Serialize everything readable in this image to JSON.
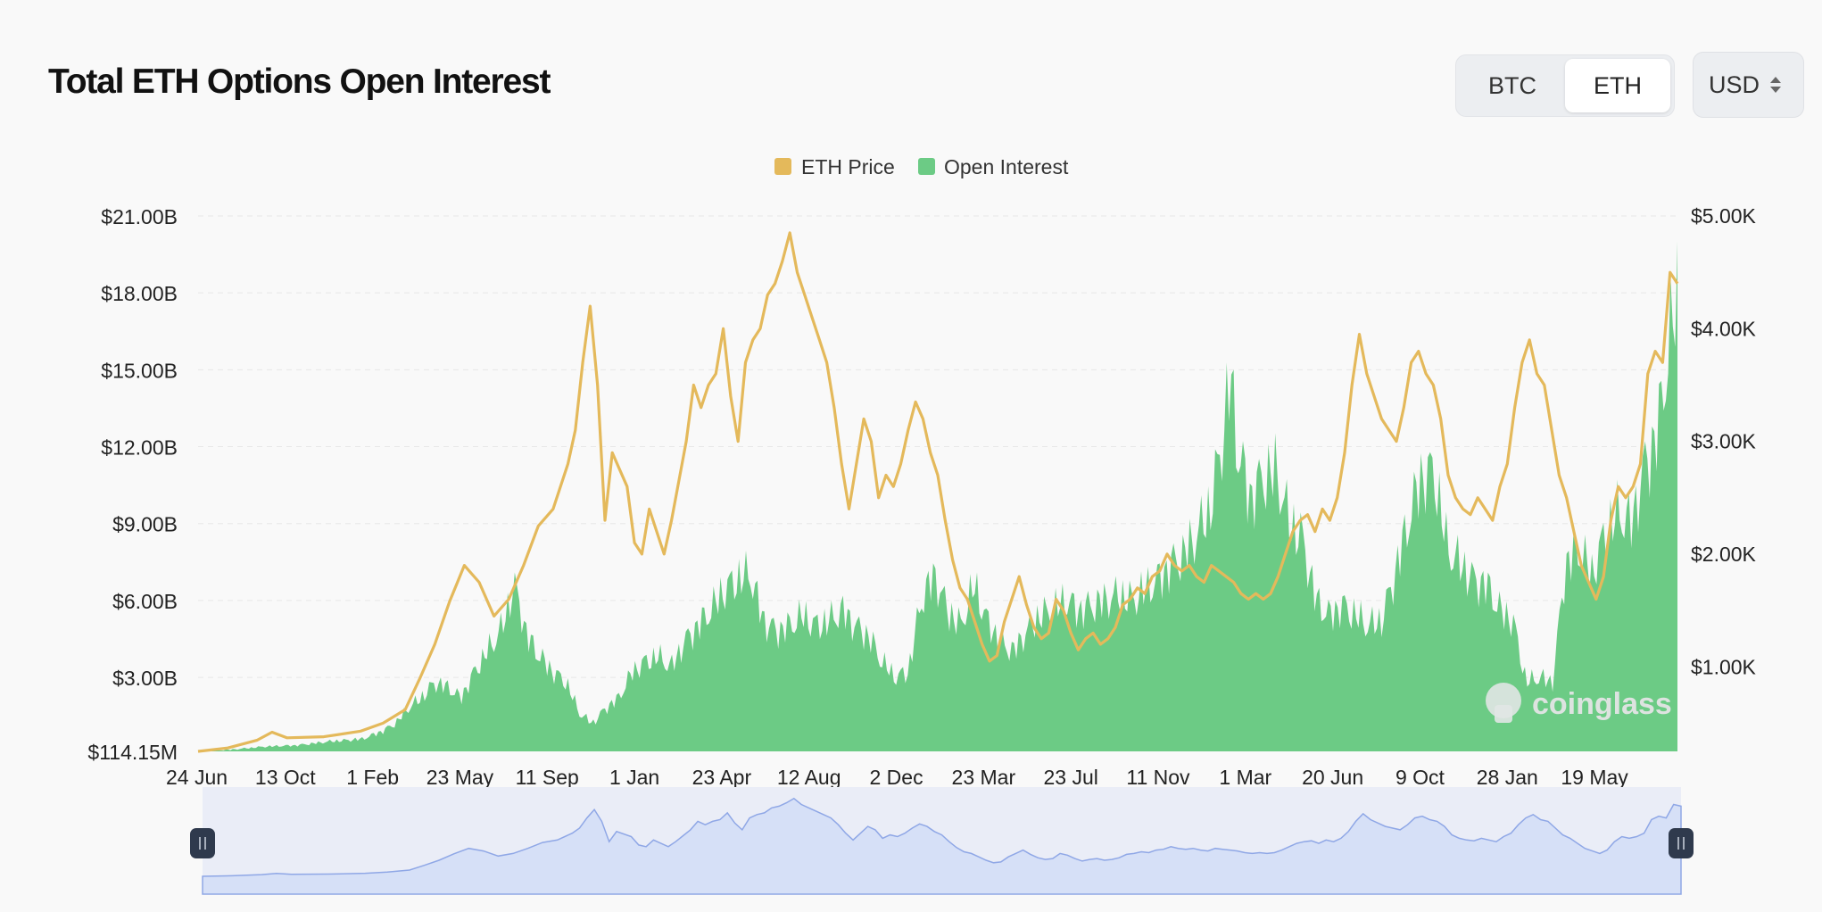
{
  "title": "Total ETH Options Open Interest",
  "toggle": {
    "options": [
      "BTC",
      "ETH"
    ],
    "active": "ETH"
  },
  "currency": {
    "value": "USD"
  },
  "watermark": "coinglass",
  "colors": {
    "price": "#e4b95b",
    "open_interest": "#6ccb85",
    "navigator": "#d6e0f7",
    "navigator_line": "#8fa7e6"
  },
  "chart_data": {
    "type": "line+area",
    "legend": {
      "placement": "top-center",
      "entries": [
        "ETH Price",
        "Open Interest"
      ]
    },
    "x_tick_labels": [
      "24 Jun",
      "13 Oct",
      "1 Feb",
      "23 May",
      "11 Sep",
      "1 Jan",
      "23 Apr",
      "12 Aug",
      "2 Dec",
      "23 Mar",
      "23 Jul",
      "11 Nov",
      "1 Mar",
      "20 Jun",
      "9 Oct",
      "28 Jan",
      "19 May"
    ],
    "y_left": {
      "ticks": [
        21000000000,
        18000000000,
        15000000000,
        12000000000,
        9000000000,
        6000000000,
        3000000000,
        114150000
      ],
      "tick_labels": [
        "$21.00B",
        "$18.00B",
        "$15.00B",
        "$12.00B",
        "$9.00B",
        "$6.00B",
        "$3.00B",
        "$114.15M"
      ],
      "range": [
        114150000,
        21000000000
      ]
    },
    "y_right": {
      "ticks": [
        5000,
        4000,
        3000,
        2000,
        1000
      ],
      "tick_labels": [
        "$5.00K",
        "$4.00K",
        "$3.00K",
        "$2.00K",
        "$1.00K"
      ],
      "range": [
        250,
        5000
      ]
    },
    "grid": true,
    "series": [
      {
        "name": "ETH Price",
        "axis": "right",
        "type": "line",
        "points": [
          [
            0,
            250
          ],
          [
            4,
            280
          ],
          [
            8,
            350
          ],
          [
            10,
            420
          ],
          [
            12,
            370
          ],
          [
            17,
            380
          ],
          [
            22,
            430
          ],
          [
            25,
            500
          ],
          [
            28,
            620
          ],
          [
            30,
            900
          ],
          [
            32,
            1200
          ],
          [
            34,
            1580
          ],
          [
            36,
            1900
          ],
          [
            38,
            1750
          ],
          [
            40,
            1450
          ],
          [
            42,
            1600
          ],
          [
            44,
            1900
          ],
          [
            46,
            2250
          ],
          [
            48,
            2400
          ],
          [
            50,
            2800
          ],
          [
            51,
            3100
          ],
          [
            52,
            3700
          ],
          [
            53,
            4200
          ],
          [
            54,
            3500
          ],
          [
            55,
            2300
          ],
          [
            56,
            2900
          ],
          [
            58,
            2600
          ],
          [
            59,
            2100
          ],
          [
            60,
            2000
          ],
          [
            61,
            2400
          ],
          [
            63,
            2000
          ],
          [
            64,
            2300
          ],
          [
            66,
            3000
          ],
          [
            67,
            3500
          ],
          [
            68,
            3300
          ],
          [
            69,
            3500
          ],
          [
            70,
            3600
          ],
          [
            71,
            4000
          ],
          [
            72,
            3400
          ],
          [
            73,
            3000
          ],
          [
            74,
            3700
          ],
          [
            75,
            3900
          ],
          [
            76,
            4000
          ],
          [
            77,
            4300
          ],
          [
            78,
            4400
          ],
          [
            79,
            4600
          ],
          [
            80,
            4850
          ],
          [
            81,
            4500
          ],
          [
            82,
            4300
          ],
          [
            83,
            4100
          ],
          [
            84,
            3900
          ],
          [
            85,
            3700
          ],
          [
            86,
            3300
          ],
          [
            87,
            2800
          ],
          [
            88,
            2400
          ],
          [
            89,
            2800
          ],
          [
            90,
            3200
          ],
          [
            91,
            3000
          ],
          [
            92,
            2500
          ],
          [
            93,
            2700
          ],
          [
            94,
            2600
          ],
          [
            95,
            2800
          ],
          [
            96,
            3100
          ],
          [
            97,
            3350
          ],
          [
            98,
            3200
          ],
          [
            99,
            2900
          ],
          [
            100,
            2700
          ],
          [
            101,
            2300
          ],
          [
            102,
            1950
          ],
          [
            103,
            1700
          ],
          [
            104,
            1600
          ],
          [
            105,
            1400
          ],
          [
            106,
            1200
          ],
          [
            107,
            1050
          ],
          [
            108,
            1100
          ],
          [
            109,
            1400
          ],
          [
            110,
            1600
          ],
          [
            111,
            1800
          ],
          [
            112,
            1550
          ],
          [
            113,
            1350
          ],
          [
            114,
            1250
          ],
          [
            115,
            1300
          ],
          [
            116,
            1600
          ],
          [
            117,
            1500
          ],
          [
            118,
            1300
          ],
          [
            119,
            1150
          ],
          [
            120,
            1250
          ],
          [
            121,
            1300
          ],
          [
            122,
            1200
          ],
          [
            123,
            1250
          ],
          [
            124,
            1350
          ],
          [
            125,
            1550
          ],
          [
            126,
            1600
          ],
          [
            127,
            1700
          ],
          [
            128,
            1650
          ],
          [
            129,
            1800
          ],
          [
            130,
            1850
          ],
          [
            131,
            2000
          ],
          [
            132,
            1900
          ],
          [
            133,
            1850
          ],
          [
            134,
            1900
          ],
          [
            135,
            1800
          ],
          [
            136,
            1750
          ],
          [
            137,
            1900
          ],
          [
            138,
            1850
          ],
          [
            139,
            1800
          ],
          [
            140,
            1750
          ],
          [
            141,
            1650
          ],
          [
            142,
            1600
          ],
          [
            143,
            1650
          ],
          [
            144,
            1600
          ],
          [
            145,
            1650
          ],
          [
            146,
            1800
          ],
          [
            147,
            2000
          ],
          [
            148,
            2200
          ],
          [
            149,
            2300
          ],
          [
            150,
            2350
          ],
          [
            151,
            2200
          ],
          [
            152,
            2400
          ],
          [
            153,
            2300
          ],
          [
            154,
            2500
          ],
          [
            155,
            2900
          ],
          [
            156,
            3500
          ],
          [
            157,
            3950
          ],
          [
            158,
            3600
          ],
          [
            159,
            3400
          ],
          [
            160,
            3200
          ],
          [
            161,
            3100
          ],
          [
            162,
            3000
          ],
          [
            163,
            3300
          ],
          [
            164,
            3700
          ],
          [
            165,
            3800
          ],
          [
            166,
            3600
          ],
          [
            167,
            3500
          ],
          [
            168,
            3200
          ],
          [
            169,
            2700
          ],
          [
            170,
            2500
          ],
          [
            171,
            2400
          ],
          [
            172,
            2350
          ],
          [
            173,
            2500
          ],
          [
            174,
            2400
          ],
          [
            175,
            2300
          ],
          [
            176,
            2600
          ],
          [
            177,
            2800
          ],
          [
            178,
            3300
          ],
          [
            179,
            3700
          ],
          [
            180,
            3900
          ],
          [
            181,
            3600
          ],
          [
            182,
            3500
          ],
          [
            183,
            3100
          ],
          [
            184,
            2700
          ],
          [
            185,
            2500
          ],
          [
            186,
            2200
          ],
          [
            187,
            1900
          ],
          [
            188,
            1750
          ],
          [
            189,
            1600
          ],
          [
            190,
            1800
          ],
          [
            191,
            2300
          ],
          [
            192,
            2600
          ],
          [
            193,
            2500
          ],
          [
            194,
            2600
          ],
          [
            195,
            2800
          ],
          [
            196,
            3600
          ],
          [
            197,
            3800
          ],
          [
            198,
            3700
          ],
          [
            199,
            4500
          ],
          [
            200,
            4400
          ]
        ]
      },
      {
        "name": "Open Interest",
        "axis": "left",
        "type": "area",
        "points": [
          [
            0,
            120000000
          ],
          [
            5,
            180000000
          ],
          [
            10,
            300000000
          ],
          [
            15,
            350000000
          ],
          [
            20,
            500000000
          ],
          [
            25,
            600000000
          ],
          [
            28,
            900000000
          ],
          [
            30,
            1200000000
          ],
          [
            32,
            1800000000
          ],
          [
            34,
            2200000000
          ],
          [
            36,
            2800000000
          ],
          [
            38,
            2600000000
          ],
          [
            40,
            2200000000
          ],
          [
            42,
            3200000000
          ],
          [
            44,
            4000000000
          ],
          [
            46,
            4800000000
          ],
          [
            47,
            5600000000
          ],
          [
            48,
            6600000000
          ],
          [
            49,
            5800000000
          ],
          [
            50,
            4600000000
          ],
          [
            52,
            3800000000
          ],
          [
            54,
            3200000000
          ],
          [
            56,
            2800000000
          ],
          [
            58,
            1600000000
          ],
          [
            60,
            1200000000
          ],
          [
            62,
            1800000000
          ],
          [
            64,
            2200000000
          ],
          [
            66,
            3200000000
          ],
          [
            68,
            3600000000
          ],
          [
            70,
            3800000000
          ],
          [
            72,
            3400000000
          ],
          [
            74,
            4400000000
          ],
          [
            76,
            5000000000
          ],
          [
            78,
            5600000000
          ],
          [
            80,
            6400000000
          ],
          [
            82,
            6800000000
          ],
          [
            84,
            7000000000
          ],
          [
            86,
            5200000000
          ],
          [
            88,
            4800000000
          ],
          [
            90,
            5000000000
          ],
          [
            92,
            5400000000
          ],
          [
            94,
            5000000000
          ],
          [
            96,
            5200000000
          ],
          [
            98,
            5600000000
          ],
          [
            100,
            5000000000
          ],
          [
            102,
            4600000000
          ],
          [
            104,
            3600000000
          ],
          [
            106,
            3000000000
          ],
          [
            108,
            3200000000
          ],
          [
            110,
            6000000000
          ],
          [
            112,
            7000000000
          ],
          [
            114,
            5600000000
          ],
          [
            116,
            5000000000
          ],
          [
            118,
            6600000000
          ],
          [
            120,
            5200000000
          ],
          [
            122,
            4400000000
          ],
          [
            124,
            4000000000
          ],
          [
            126,
            4800000000
          ],
          [
            128,
            5400000000
          ],
          [
            130,
            5600000000
          ],
          [
            132,
            6000000000
          ],
          [
            134,
            5600000000
          ],
          [
            136,
            5800000000
          ],
          [
            138,
            6000000000
          ],
          [
            140,
            6200000000
          ],
          [
            142,
            6000000000
          ],
          [
            144,
            6400000000
          ],
          [
            146,
            6800000000
          ],
          [
            148,
            7400000000
          ],
          [
            150,
            7800000000
          ],
          [
            152,
            8600000000
          ],
          [
            154,
            9600000000
          ],
          [
            156,
            12600000000
          ],
          [
            157,
            14800000000
          ],
          [
            158,
            12000000000
          ],
          [
            160,
            10000000000
          ],
          [
            162,
            10800000000
          ],
          [
            164,
            11000000000
          ],
          [
            166,
            9000000000
          ],
          [
            168,
            8400000000
          ],
          [
            170,
            6000000000
          ],
          [
            172,
            5400000000
          ],
          [
            174,
            5800000000
          ],
          [
            176,
            5400000000
          ],
          [
            178,
            5000000000
          ],
          [
            180,
            5200000000
          ],
          [
            182,
            7000000000
          ],
          [
            184,
            9000000000
          ],
          [
            186,
            10800000000
          ],
          [
            188,
            11000000000
          ],
          [
            190,
            8000000000
          ],
          [
            192,
            7400000000
          ],
          [
            194,
            6800000000
          ],
          [
            196,
            6600000000
          ],
          [
            198,
            5600000000
          ],
          [
            200,
            5200000000
          ],
          [
            202,
            2800000000
          ],
          [
            204,
            3000000000
          ],
          [
            206,
            2800000000
          ],
          [
            208,
            7400000000
          ],
          [
            210,
            8000000000
          ],
          [
            212,
            7000000000
          ],
          [
            214,
            8600000000
          ],
          [
            216,
            9400000000
          ],
          [
            218,
            9000000000
          ],
          [
            220,
            11200000000
          ],
          [
            222,
            12600000000
          ],
          [
            224,
            16400000000
          ],
          [
            225,
            17800000000
          ]
        ]
      }
    ]
  }
}
